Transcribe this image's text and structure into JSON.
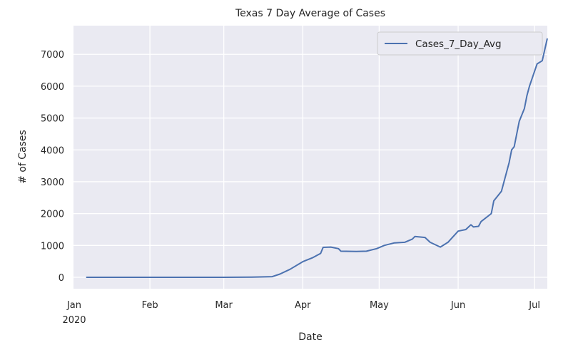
{
  "chart_data": {
    "type": "line",
    "title": "Texas 7 Day Average of Cases",
    "xlabel": "Date",
    "ylabel": "# of Cases",
    "xlim": [
      "2020-01-02",
      "2020-07-06"
    ],
    "ylim": [
      -358,
      7900
    ],
    "grid": true,
    "legend_placement": "top-right",
    "x_ticks": [
      {
        "date": "2020-01-01",
        "label": "Jan",
        "sublabel": "2020"
      },
      {
        "date": "2020-02-01",
        "label": "Feb"
      },
      {
        "date": "2020-03-01",
        "label": "Mar"
      },
      {
        "date": "2020-04-01",
        "label": "Apr"
      },
      {
        "date": "2020-05-01",
        "label": "May"
      },
      {
        "date": "2020-06-01",
        "label": "Jun"
      },
      {
        "date": "2020-07-01",
        "label": "Jul"
      }
    ],
    "y_ticks": [
      0,
      1000,
      2000,
      3000,
      4000,
      5000,
      6000,
      7000
    ],
    "series": [
      {
        "name": "Cases_7_Day_Avg",
        "color": "#4c72b0",
        "points": [
          [
            "2020-01-07",
            0
          ],
          [
            "2020-03-01",
            0
          ],
          [
            "2020-03-12",
            5
          ],
          [
            "2020-03-20",
            20
          ],
          [
            "2020-03-23",
            100
          ],
          [
            "2020-03-27",
            250
          ],
          [
            "2020-04-01",
            490
          ],
          [
            "2020-04-05",
            620
          ],
          [
            "2020-04-08",
            750
          ],
          [
            "2020-04-09",
            940
          ],
          [
            "2020-04-12",
            950
          ],
          [
            "2020-04-15",
            900
          ],
          [
            "2020-04-16",
            820
          ],
          [
            "2020-04-22",
            810
          ],
          [
            "2020-04-26",
            820
          ],
          [
            "2020-04-30",
            900
          ],
          [
            "2020-05-03",
            1000
          ],
          [
            "2020-05-07",
            1080
          ],
          [
            "2020-05-11",
            1100
          ],
          [
            "2020-05-14",
            1200
          ],
          [
            "2020-05-15",
            1280
          ],
          [
            "2020-05-19",
            1250
          ],
          [
            "2020-05-21",
            1100
          ],
          [
            "2020-05-25",
            950
          ],
          [
            "2020-05-28",
            1100
          ],
          [
            "2020-06-01",
            1450
          ],
          [
            "2020-06-04",
            1500
          ],
          [
            "2020-06-06",
            1650
          ],
          [
            "2020-06-07",
            1580
          ],
          [
            "2020-06-09",
            1600
          ],
          [
            "2020-06-10",
            1750
          ],
          [
            "2020-06-14",
            2000
          ],
          [
            "2020-06-15",
            2400
          ],
          [
            "2020-06-18",
            2700
          ],
          [
            "2020-06-21",
            3600
          ],
          [
            "2020-06-22",
            4000
          ],
          [
            "2020-06-23",
            4100
          ],
          [
            "2020-06-25",
            4900
          ],
          [
            "2020-06-27",
            5300
          ],
          [
            "2020-06-28",
            5700
          ],
          [
            "2020-06-29",
            6000
          ],
          [
            "2020-07-02",
            6700
          ],
          [
            "2020-07-04",
            6800
          ],
          [
            "2020-07-06",
            7500
          ]
        ]
      }
    ]
  }
}
